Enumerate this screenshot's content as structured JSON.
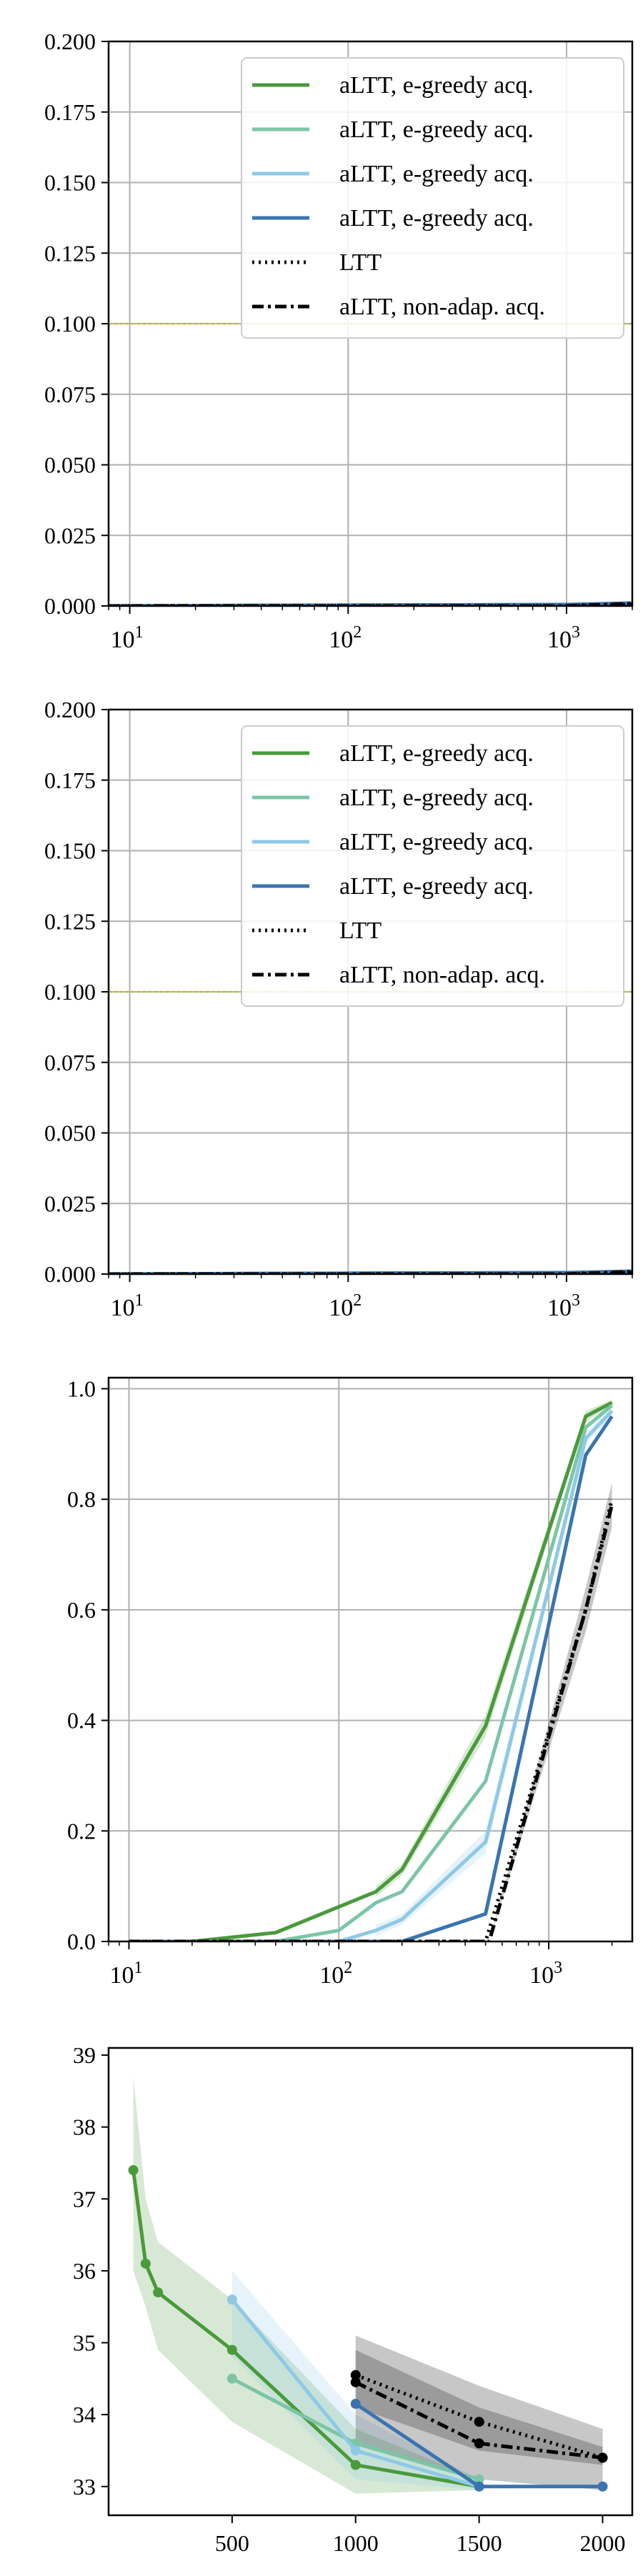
{
  "legend_labels": [
    "aLTT, e-greedy acq.",
    "aLTT, e-greedy acq.",
    "aLTT, e-greedy acq.",
    "aLTT, e-greedy acq.",
    "LTT",
    "aLTT, non-adap. acq."
  ],
  "colors": {
    "green": "#4a9a3b",
    "teal": "#7cc5a6",
    "lightblue": "#8ec9e6",
    "blue": "#3a74b0",
    "black": "#000000",
    "threshold": "#bcbd22"
  },
  "chart_data": [
    {
      "type": "line",
      "xscale": "log",
      "xlim": [
        8,
        2000
      ],
      "ylim": [
        0,
        0.2
      ],
      "grid": true,
      "legend_position": "upper-right",
      "x_tick_labels": [
        "10",
        "10",
        "10"
      ],
      "x_tick_exponents": [
        "1",
        "2",
        "3"
      ],
      "x_tick_values": [
        10,
        100,
        1000
      ],
      "y_ticks": [
        0.0,
        0.025,
        0.05,
        0.075,
        0.1,
        0.125,
        0.15,
        0.175,
        0.2
      ],
      "y_tick_labels": [
        "0.000",
        "0.025",
        "0.050",
        "0.075",
        "0.100",
        "0.125",
        "0.150",
        "0.175",
        "0.200"
      ],
      "threshold": 0.1,
      "series": [
        {
          "name": "aLTT, e-greedy acq.",
          "color": "green",
          "x": [
            8,
            100,
            2000
          ],
          "y": [
            0,
            0.0003,
            0.0005
          ]
        },
        {
          "name": "aLTT, e-greedy acq.",
          "color": "teal",
          "x": [
            8,
            100,
            2000
          ],
          "y": [
            0,
            0.0002,
            0.0004
          ]
        },
        {
          "name": "aLTT, e-greedy acq.",
          "color": "lightblue",
          "x": [
            8,
            100,
            2000
          ],
          "y": [
            0,
            0.0001,
            0.0004
          ]
        },
        {
          "name": "aLTT, e-greedy acq.",
          "color": "blue",
          "x": [
            8,
            1000,
            2000
          ],
          "y": [
            0,
            0.0005,
            0.001
          ]
        },
        {
          "name": "LTT",
          "color": "black",
          "dash": "dot",
          "x": [
            8,
            1000,
            2000
          ],
          "y": [
            0,
            0,
            0.0005
          ]
        },
        {
          "name": "aLTT, non-adap. acq.",
          "color": "black",
          "dash": "dashdot",
          "x": [
            8,
            1000,
            2000
          ],
          "y": [
            0,
            0,
            0.0008
          ]
        }
      ]
    },
    {
      "type": "line",
      "xscale": "log",
      "xlim": [
        8,
        2000
      ],
      "ylim": [
        0,
        0.2
      ],
      "grid": true,
      "legend_position": "upper-right",
      "x_tick_labels": [
        "10",
        "10",
        "10"
      ],
      "x_tick_exponents": [
        "1",
        "2",
        "3"
      ],
      "x_tick_values": [
        10,
        100,
        1000
      ],
      "y_ticks": [
        0.0,
        0.025,
        0.05,
        0.075,
        0.1,
        0.125,
        0.15,
        0.175,
        0.2
      ],
      "y_tick_labels": [
        "0.000",
        "0.025",
        "0.050",
        "0.075",
        "0.100",
        "0.125",
        "0.150",
        "0.175",
        "0.200"
      ],
      "threshold": 0.1,
      "series": [
        {
          "name": "aLTT, e-greedy acq.",
          "color": "green",
          "x": [
            8,
            100,
            2000
          ],
          "y": [
            0,
            0.0003,
            0.0005
          ]
        },
        {
          "name": "aLTT, e-greedy acq.",
          "color": "teal",
          "x": [
            8,
            100,
            2000
          ],
          "y": [
            0,
            0.0002,
            0.0004
          ]
        },
        {
          "name": "aLTT, e-greedy acq.",
          "color": "lightblue",
          "x": [
            8,
            100,
            2000
          ],
          "y": [
            0,
            0.0001,
            0.0004
          ]
        },
        {
          "name": "aLTT, e-greedy acq.",
          "color": "blue",
          "x": [
            8,
            1000,
            2000
          ],
          "y": [
            0,
            0.0005,
            0.001
          ]
        },
        {
          "name": "LTT",
          "color": "black",
          "dash": "dot",
          "x": [
            8,
            1000,
            2000
          ],
          "y": [
            0,
            0,
            0.0005
          ]
        },
        {
          "name": "aLTT, non-adap. acq.",
          "color": "black",
          "dash": "dashdot",
          "x": [
            8,
            1000,
            2000
          ],
          "y": [
            0,
            0,
            0.0008
          ]
        }
      ]
    },
    {
      "type": "line",
      "xscale": "log",
      "xlim": [
        8,
        2500
      ],
      "ylim": [
        0,
        1.02
      ],
      "grid": true,
      "x_tick_labels": [
        "10",
        "10",
        "10"
      ],
      "x_tick_exponents": [
        "1",
        "2",
        "3"
      ],
      "x_tick_values": [
        10,
        100,
        1000
      ],
      "y_ticks": [
        0.0,
        0.2,
        0.4,
        0.6,
        0.8,
        1.0
      ],
      "y_tick_labels": [
        "0.0",
        "0.2",
        "0.4",
        "0.6",
        "0.8",
        "1.0"
      ],
      "series": [
        {
          "color": "green",
          "x": [
            10,
            20,
            50,
            150,
            200,
            500,
            1500,
            2000
          ],
          "y": [
            0,
            0,
            0.016,
            0.09,
            0.13,
            0.39,
            0.95,
            0.975
          ]
        },
        {
          "color": "teal",
          "x": [
            10,
            50,
            100,
            150,
            200,
            500,
            1500,
            2000
          ],
          "y": [
            0,
            0,
            0.02,
            0.07,
            0.09,
            0.29,
            0.93,
            0.97
          ]
        },
        {
          "color": "lightblue",
          "x": [
            10,
            100,
            150,
            200,
            500,
            1500,
            2000
          ],
          "y": [
            0,
            0,
            0.02,
            0.04,
            0.18,
            0.91,
            0.96
          ]
        },
        {
          "color": "blue",
          "x": [
            10,
            200,
            500,
            1500,
            2000
          ],
          "y": [
            0,
            0,
            0.05,
            0.88,
            0.95
          ]
        },
        {
          "color": "black",
          "dash": "dot",
          "x": [
            10,
            500,
            1500,
            2000
          ],
          "y": [
            0,
            0,
            0.6,
            0.8
          ]
        },
        {
          "color": "black",
          "dash": "dashdot",
          "x": [
            10,
            520,
            1500,
            2000
          ],
          "y": [
            0,
            0,
            0.6,
            0.79
          ]
        }
      ],
      "bands": [
        {
          "color": "black",
          "x": [
            520,
            1500,
            2000
          ],
          "lower": [
            0,
            0.56,
            0.75
          ],
          "upper": [
            0,
            0.64,
            0.83
          ]
        },
        {
          "color": "green",
          "x": [
            150,
            200,
            500,
            1500,
            2000
          ],
          "lower": [
            0.08,
            0.12,
            0.37,
            0.94,
            0.97
          ],
          "upper": [
            0.1,
            0.14,
            0.41,
            0.96,
            0.98
          ]
        },
        {
          "color": "lightblue",
          "x": [
            150,
            200,
            500,
            1500,
            2000
          ],
          "lower": [
            0.01,
            0.03,
            0.16,
            0.9,
            0.95
          ],
          "upper": [
            0.03,
            0.05,
            0.2,
            0.92,
            0.97
          ]
        }
      ]
    },
    {
      "type": "line",
      "xscale": "linear",
      "xlim": [
        0,
        2120
      ],
      "ylim": [
        32.6,
        39.1
      ],
      "grid": false,
      "x_ticks": [
        500,
        1000,
        1500,
        2000
      ],
      "x_tick_labels": [
        "500",
        "1000",
        "1500",
        "2000"
      ],
      "y_ticks": [
        33,
        34,
        35,
        36,
        37,
        38,
        39
      ],
      "y_tick_labels": [
        "33",
        "34",
        "35",
        "36",
        "37",
        "38",
        "39"
      ],
      "series": [
        {
          "color": "green",
          "markers": true,
          "x": [
            100,
            150,
            200,
            500,
            1000,
            1500
          ],
          "y": [
            37.4,
            36.1,
            35.7,
            34.9,
            33.3,
            33.0
          ]
        },
        {
          "color": "teal",
          "markers": true,
          "x": [
            500,
            1000,
            1500
          ],
          "y": [
            34.5,
            33.6,
            33.1
          ]
        },
        {
          "color": "lightblue",
          "markers": true,
          "x": [
            500,
            1000,
            1500
          ],
          "y": [
            35.6,
            33.5,
            33.0
          ]
        },
        {
          "color": "blue",
          "markers": true,
          "x": [
            1000,
            1500,
            2000
          ],
          "y": [
            34.15,
            33.0,
            33.0
          ]
        },
        {
          "color": "black",
          "markers": true,
          "dash": "dot",
          "x": [
            1000,
            1500,
            2000
          ],
          "y": [
            34.55,
            33.9,
            33.4
          ]
        },
        {
          "color": "black",
          "markers": true,
          "dash": "dashdot",
          "x": [
            1000,
            1500,
            2000
          ],
          "y": [
            34.45,
            33.6,
            33.4
          ]
        }
      ],
      "bands": [
        {
          "color": "green",
          "x": [
            100,
            150,
            200,
            500,
            1000,
            1500
          ],
          "lower": [
            36.0,
            35.5,
            34.9,
            33.9,
            32.9,
            32.95
          ],
          "upper": [
            38.7,
            37.0,
            36.4,
            35.6,
            33.8,
            33.1
          ]
        },
        {
          "color": "lightblue",
          "x": [
            500,
            1000,
            1500
          ],
          "lower": [
            34.8,
            33.1,
            32.95
          ],
          "upper": [
            36.0,
            34.0,
            33.1
          ]
        },
        {
          "color": "black",
          "x": [
            1000,
            1500,
            2000
          ],
          "lower": [
            33.6,
            33.1,
            32.95
          ],
          "upper": [
            35.1,
            34.4,
            33.8
          ]
        },
        {
          "color": "black",
          "x": [
            1000,
            1500,
            2000
          ],
          "lower": [
            34.1,
            33.5,
            33.3
          ],
          "upper": [
            34.9,
            34.1,
            33.55
          ]
        }
      ]
    }
  ]
}
